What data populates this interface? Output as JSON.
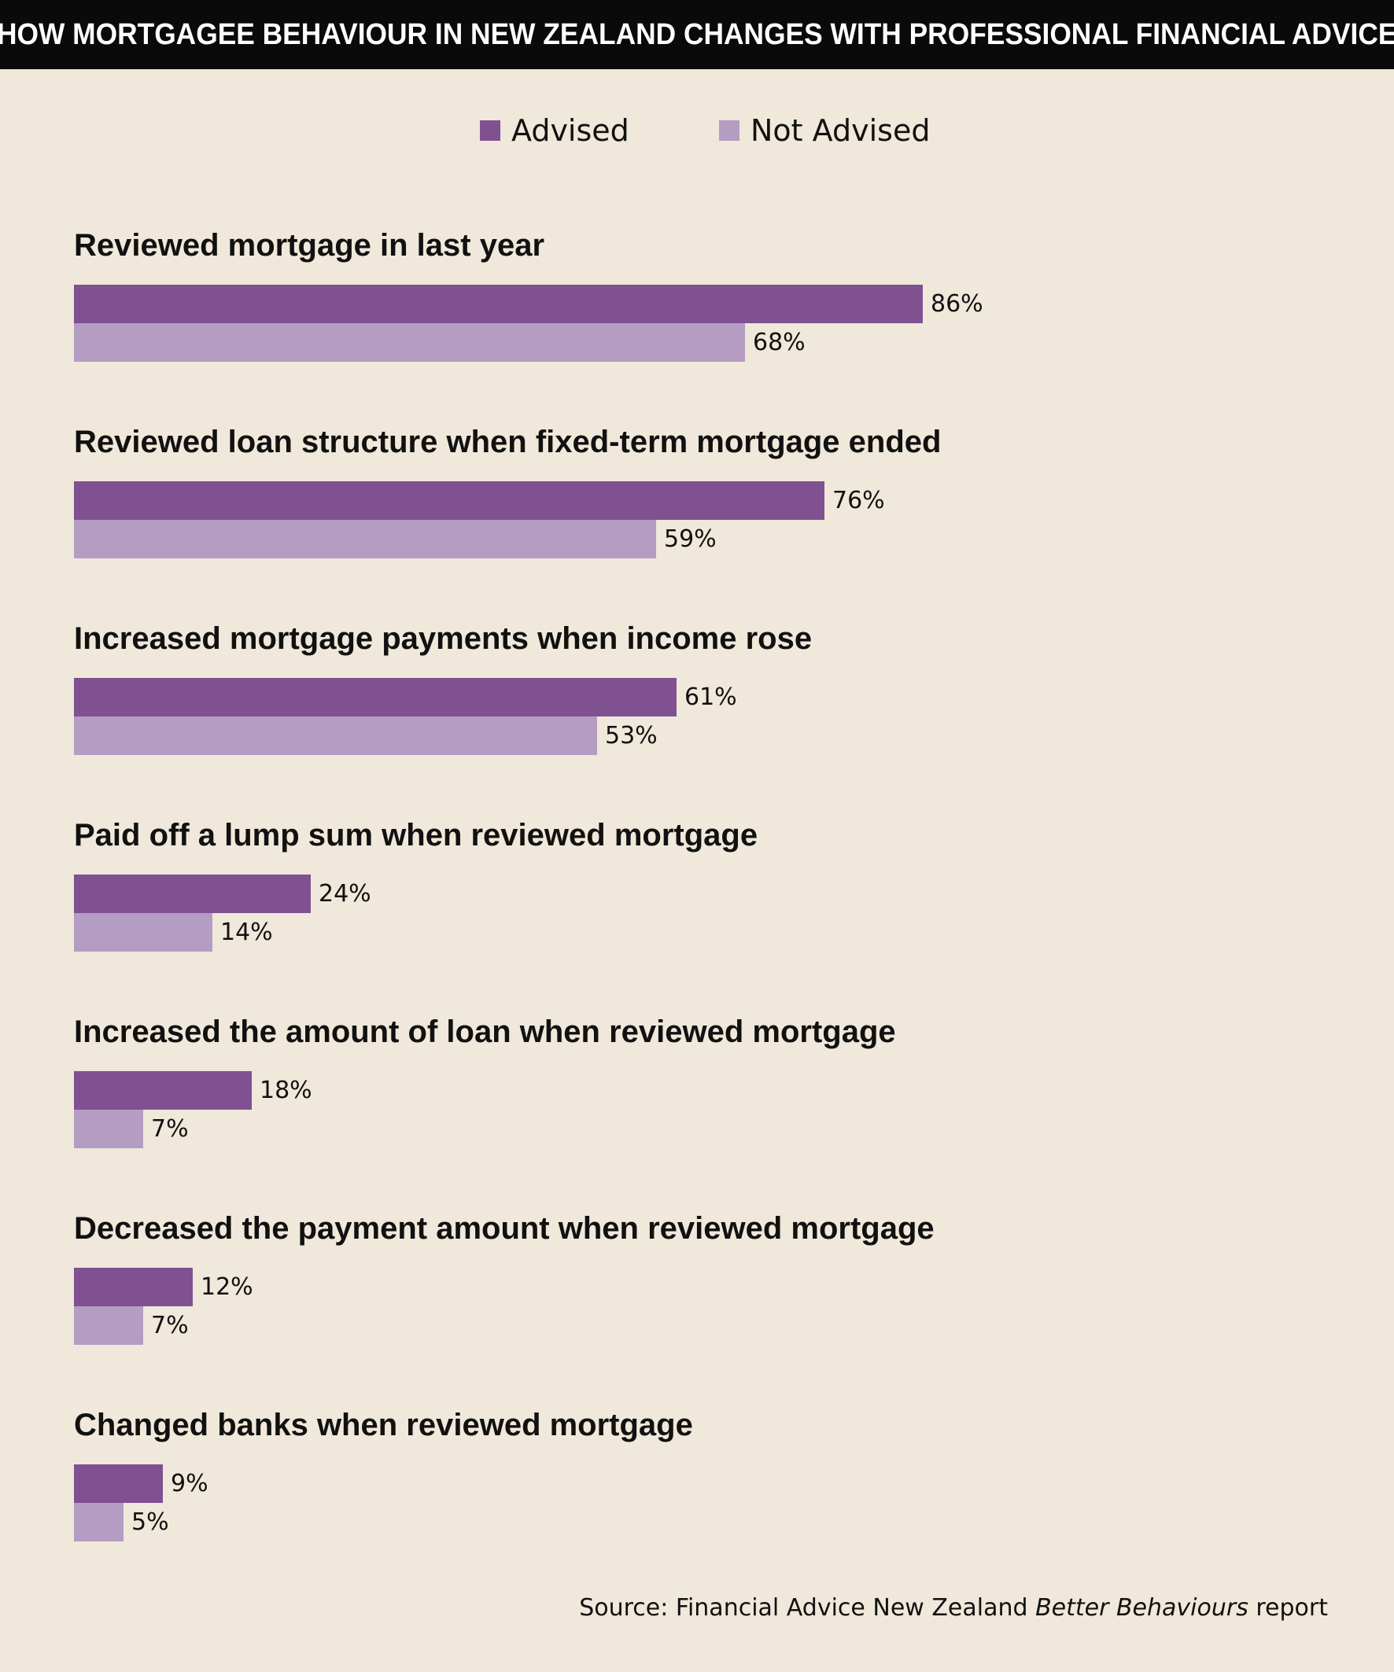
{
  "title": "HOW MORTGAGEE BEHAVIOUR IN NEW ZEALAND CHANGES WITH PROFESSIONAL FINANCIAL ADVICE",
  "legend": {
    "advised": "Advised",
    "not_advised": "Not Advised"
  },
  "colors": {
    "advised": "#7f5191",
    "not_advised": "#b59cc3",
    "background": "#f0e8da",
    "header": "#0a0a0a"
  },
  "source": {
    "prefix": "Source: Financial Advice New Zealand ",
    "italic": "Better Behaviours",
    "suffix": " report"
  },
  "chart_data": {
    "type": "bar",
    "orientation": "horizontal",
    "title": "HOW MORTGAGEE BEHAVIOUR IN NEW ZEALAND CHANGES WITH PROFESSIONAL FINANCIAL ADVICE",
    "xlim": [
      0,
      100
    ],
    "grid": false,
    "legend_position": "top-center",
    "categories": [
      "Reviewed mortgage in last year",
      "Reviewed loan structure when fixed-term mortgage ended",
      "Increased mortgage payments when income rose",
      "Paid off a lump sum when reviewed mortgage",
      "Increased the amount of loan when reviewed mortgage",
      "Decreased the payment amount when reviewed mortgage",
      "Changed banks when reviewed mortgage"
    ],
    "series": [
      {
        "name": "Advised",
        "values": [
          86,
          76,
          61,
          24,
          18,
          12,
          9
        ]
      },
      {
        "name": "Not Advised",
        "values": [
          68,
          59,
          53,
          14,
          7,
          7,
          5
        ]
      }
    ],
    "value_suffix": "%"
  }
}
